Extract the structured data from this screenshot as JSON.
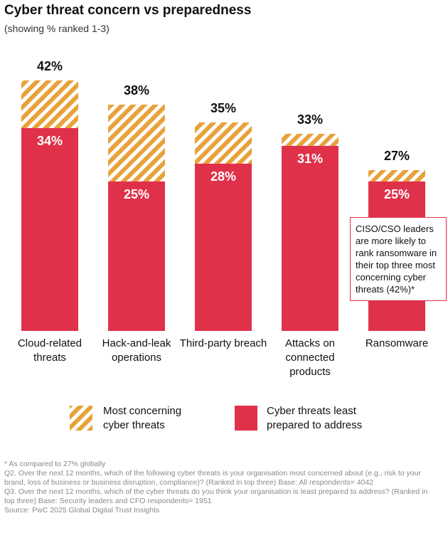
{
  "chart_data": {
    "type": "bar",
    "title": "Cyber threat concern vs preparedness",
    "subtitle": "(showing % ranked 1-3)",
    "categories": [
      "Cloud-related threats",
      "Hack-and-leak operations",
      "Third-party breach",
      "Attacks on connected products",
      "Ransomware"
    ],
    "series": [
      {
        "name": "Most concerning cyber threats",
        "color": "#e8a23a",
        "hatch": true,
        "values": [
          42,
          38,
          35,
          33,
          27
        ],
        "value_labels": [
          "42%",
          "38%",
          "35%",
          "33%",
          "27%"
        ]
      },
      {
        "name": "Cyber threats least prepared to address",
        "color": "#e0314b",
        "hatch": false,
        "values": [
          34,
          25,
          28,
          31,
          25
        ],
        "value_labels": [
          "34%",
          "25%",
          "28%",
          "31%",
          "25%"
        ]
      }
    ],
    "annotation": "CISO/CSO leaders are more likely to rank ransomware in their top three most concerning cyber threats (42%)*",
    "notes": [
      "* As compared to 27% globally",
      "Q2. Over the next 12 months, which of the following cyber threats is your organisation most concerned about (e.g., risk to your brand, loss of business or business disruption, compliance)? (Ranked in top three) Base: All respondents= 4042",
      "Q3. Over the next 12 months, which of the cyber threats do you think your organisation is least prepared to address? (Ranked in top three) Base: Security leaders and CFO respondents= 1951",
      "Source: PwC 2025 Global Digital Trust Insights"
    ]
  }
}
